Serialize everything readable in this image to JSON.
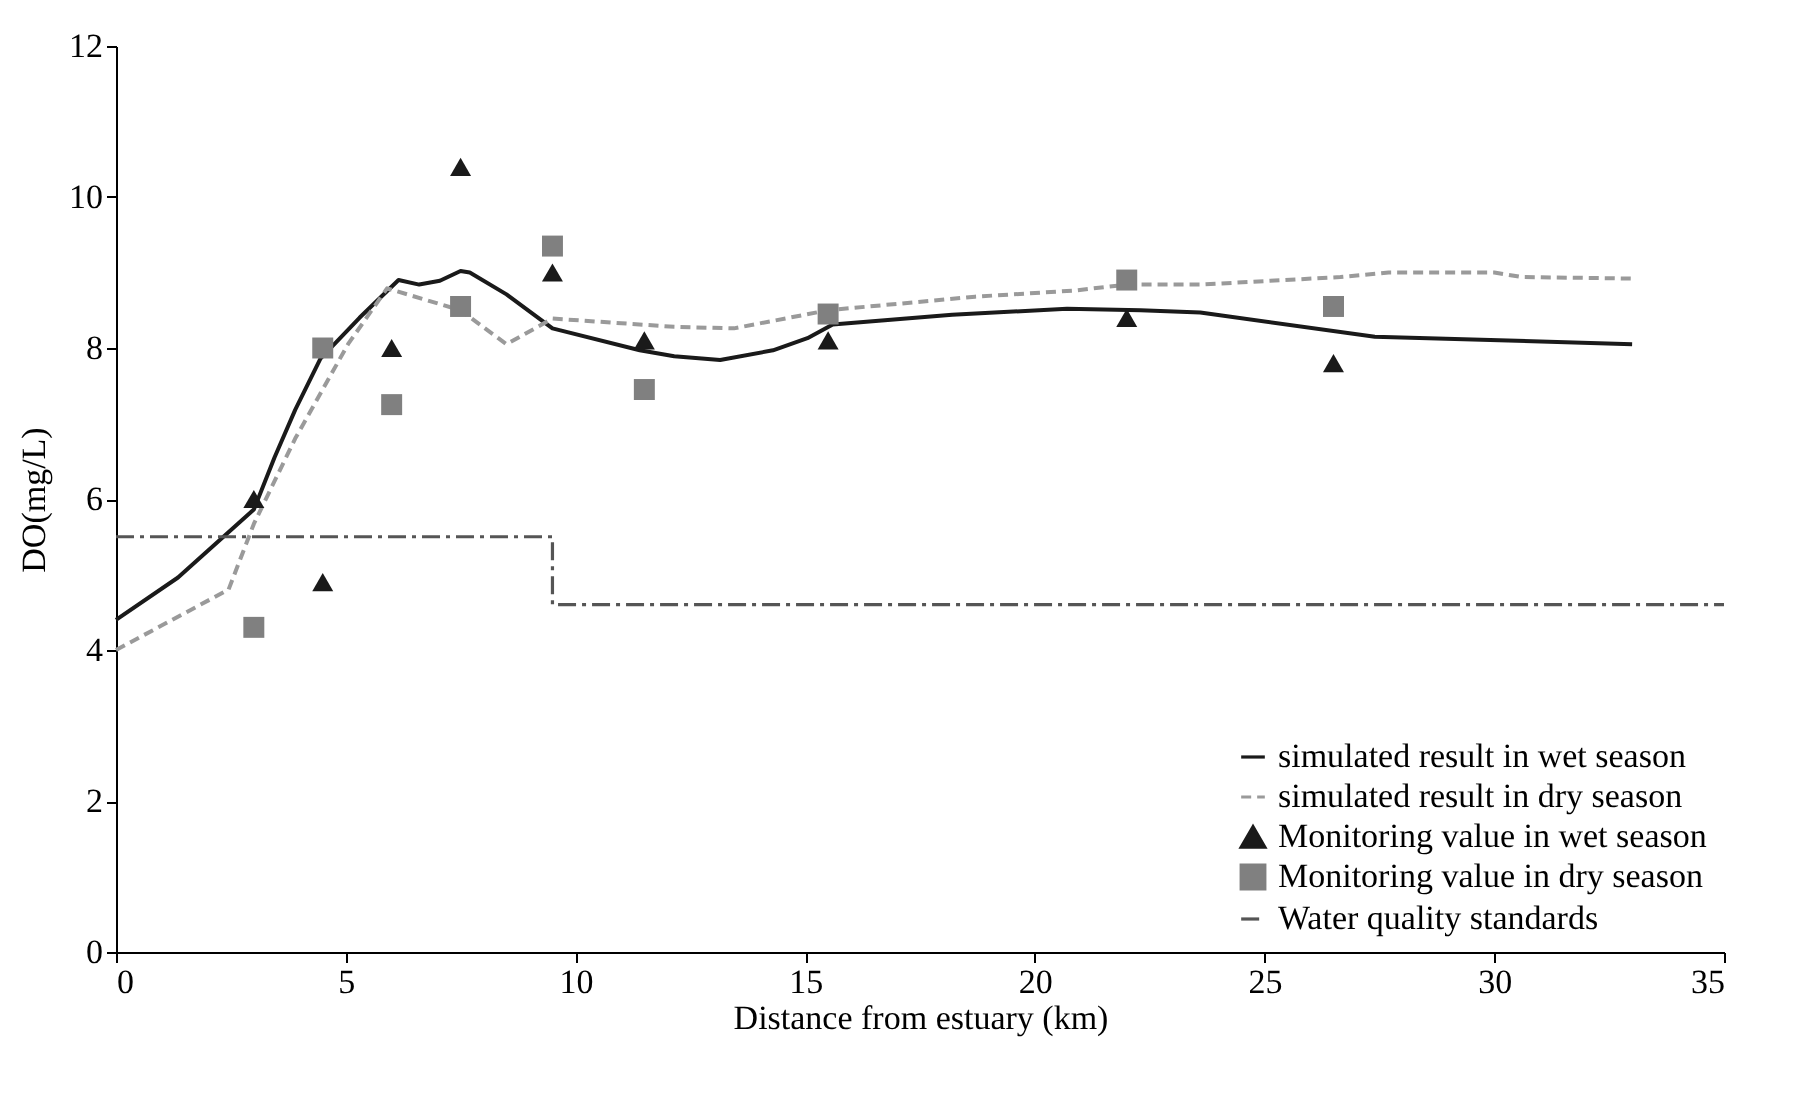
{
  "chart_data": {
    "type": "line",
    "xlabel": "Distance from estuary (km)",
    "ylabel": "DO(mg/L)",
    "xlim": [
      0,
      35
    ],
    "xticks": [
      0,
      5,
      10,
      15,
      20,
      25,
      30,
      35
    ],
    "ylim": [
      0,
      12
    ],
    "yticks": [
      0,
      2,
      4,
      6,
      8,
      10,
      12
    ],
    "grid": false,
    "legend": "bottom right",
    "series": [
      {
        "name": "simulated result in wet season",
        "line_style": "solid",
        "color": "#1a1a1a",
        "x": [
          0,
          1.35,
          3.0,
          3.45,
          3.9,
          4.45,
          5.3,
          6.15,
          6.6,
          7.05,
          7.5,
          7.7,
          8.5,
          9.5,
          11.4,
          12.15,
          13.15,
          14.3,
          15.05,
          15.6,
          18.2,
          20.7,
          22.3,
          23.6,
          27.4,
          30.3,
          33.0
        ],
        "values": [
          4.4,
          4.96,
          5.86,
          6.55,
          7.18,
          7.86,
          8.4,
          8.9,
          8.84,
          8.89,
          9.02,
          9.0,
          8.71,
          8.26,
          7.97,
          7.89,
          7.84,
          7.97,
          8.13,
          8.31,
          8.44,
          8.52,
          8.5,
          8.47,
          8.15,
          8.1,
          8.05
        ]
      },
      {
        "name": "simulated result in dry season",
        "line_style": "dashed",
        "color": "#9a9a9a",
        "x": [
          0,
          2.45,
          3.0,
          3.9,
          5.05,
          5.9,
          7.5,
          8.5,
          9.5,
          12.15,
          13.45,
          15.5,
          18.7,
          20.85,
          22.0,
          23.6,
          26.65,
          27.7,
          30.0,
          30.6,
          33.0
        ],
        "values": [
          4.0,
          4.8,
          5.67,
          6.8,
          8.05,
          8.79,
          8.5,
          8.05,
          8.39,
          8.28,
          8.26,
          8.5,
          8.68,
          8.76,
          8.84,
          8.84,
          8.94,
          9.0,
          9.0,
          8.94,
          8.92
        ]
      },
      {
        "name": "Monitoring value in wet season",
        "type": "scatter",
        "marker": "triangle",
        "color": "#1a1a1a",
        "x": [
          3.0,
          4.5,
          6.0,
          7.5,
          9.5,
          11.5,
          15.5,
          22.0,
          26.5
        ],
        "values": [
          6.0,
          4.9,
          8.0,
          10.4,
          9.0,
          8.1,
          8.1,
          8.4,
          7.8
        ]
      },
      {
        "name": "Monitoring value in dry season",
        "type": "scatter",
        "marker": "square",
        "color": "#808080",
        "x": [
          3.0,
          4.5,
          6.0,
          7.5,
          9.5,
          11.5,
          15.5,
          22.0,
          26.5
        ],
        "values": [
          4.3,
          8.0,
          7.25,
          8.55,
          9.35,
          7.45,
          8.45,
          8.9,
          8.55
        ]
      },
      {
        "name": "Water quality standards",
        "type": "step",
        "line_style": "dotted",
        "color": "#555555",
        "x": [
          0,
          9.5,
          35
        ],
        "values": [
          5.5,
          4.6,
          4.6
        ]
      }
    ]
  }
}
